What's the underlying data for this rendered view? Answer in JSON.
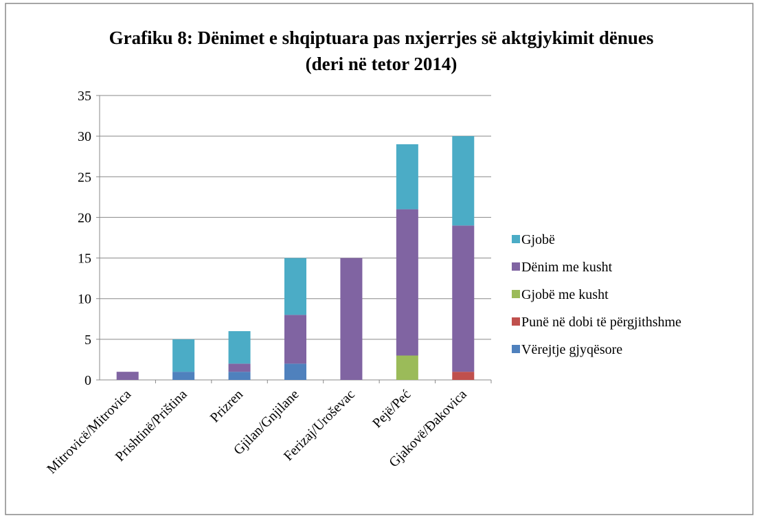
{
  "chart_data": {
    "type": "stacked_bar",
    "title": "Grafiku 8: Dënimet e shqiptuara pas nxjerrjes së aktgjykimit dënues (deri në tetor 2014)",
    "categories": [
      "Mitrovicë/Mitrovica",
      "Prishtinë/Priština",
      "Prizren",
      "Gjilan/Gnjilane",
      "Ferizaj/Uroševac",
      "Pejë/Peć",
      "Gjakovë/Đakovica"
    ],
    "series": [
      {
        "name": "Vërejtje gjyqësore",
        "color": "#4f81bd",
        "values": [
          0,
          1,
          1,
          2,
          0,
          0,
          0
        ]
      },
      {
        "name": "Punë në dobi të përgjithshme",
        "color": "#c0504d",
        "values": [
          0,
          0,
          0,
          0,
          0,
          0,
          1
        ]
      },
      {
        "name": "Gjobë me kusht",
        "color": "#9bbb59",
        "values": [
          0,
          0,
          0,
          0,
          0,
          3,
          0
        ]
      },
      {
        "name": "Dënim me kusht",
        "color": "#8064a2",
        "values": [
          1,
          0,
          1,
          6,
          15,
          18,
          18
        ]
      },
      {
        "name": "Gjobë",
        "color": "#4bacc6",
        "values": [
          0,
          4,
          4,
          7,
          0,
          8,
          11
        ]
      }
    ],
    "ylim": [
      0,
      35
    ],
    "yticks": [
      0,
      5,
      10,
      15,
      20,
      25,
      30,
      35
    ],
    "grid": true,
    "legend": "right"
  }
}
